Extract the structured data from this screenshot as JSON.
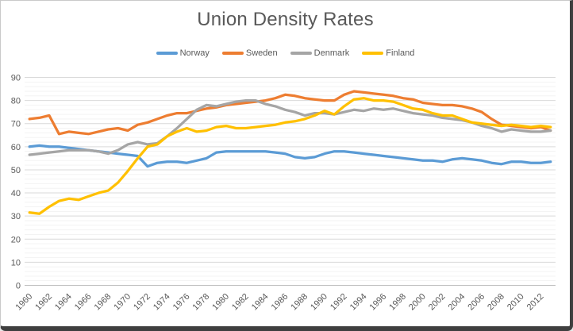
{
  "chart_data": {
    "type": "line",
    "title": "Union Density Rates",
    "xlabel": "",
    "ylabel": "",
    "ylim": [
      0,
      90
    ],
    "ytick_step": 10,
    "minor_ytick_step": 2,
    "x_tick_interval": 2,
    "grid": true,
    "legend_position": "top",
    "x": [
      1960,
      1961,
      1962,
      1963,
      1964,
      1965,
      1966,
      1967,
      1968,
      1969,
      1970,
      1971,
      1972,
      1973,
      1974,
      1975,
      1976,
      1977,
      1978,
      1979,
      1980,
      1981,
      1982,
      1983,
      1984,
      1985,
      1986,
      1987,
      1988,
      1989,
      1990,
      1991,
      1992,
      1993,
      1994,
      1995,
      1996,
      1997,
      1998,
      1999,
      2000,
      2001,
      2002,
      2003,
      2004,
      2005,
      2006,
      2007,
      2008,
      2009,
      2010,
      2011,
      2012,
      2013
    ],
    "series": [
      {
        "name": "Norway",
        "color": "#5B9BD5",
        "values": [
          60,
          60.5,
          60,
          60,
          59.5,
          59,
          58.5,
          58,
          57.5,
          57,
          56.5,
          56,
          51.5,
          53,
          53.5,
          53.5,
          53,
          54,
          55,
          57.5,
          58,
          58,
          58,
          58,
          58,
          57.5,
          57,
          55.5,
          55,
          55.5,
          57,
          58,
          58,
          57.5,
          57,
          56.5,
          56,
          55.5,
          55,
          54.5,
          54,
          54,
          53.5,
          54.5,
          55,
          54.5,
          54,
          53,
          52.5,
          53.5,
          53.5,
          53,
          53,
          53.5
        ]
      },
      {
        "name": "Sweden",
        "color": "#ED7D31",
        "values": [
          72,
          72.5,
          73.5,
          65.5,
          66.5,
          66,
          65.5,
          66.5,
          67.5,
          68,
          67,
          69.5,
          70.5,
          72,
          73.5,
          74.5,
          74.5,
          75.5,
          76.5,
          77,
          78,
          78.5,
          79,
          79.5,
          80,
          81,
          82.5,
          82,
          81,
          80.5,
          80,
          80,
          82.5,
          84,
          83.5,
          83,
          82.5,
          82,
          81,
          80.5,
          79,
          78.5,
          78,
          78,
          77.5,
          76.5,
          75,
          72,
          69.5,
          69,
          68.5,
          68,
          68.5,
          67
        ]
      },
      {
        "name": "Denmark",
        "color": "#A5A5A5",
        "values": [
          56.5,
          57,
          57.5,
          58,
          58.5,
          58.5,
          58.5,
          58,
          57,
          58.5,
          61,
          62,
          61,
          61.5,
          64.5,
          68,
          72,
          76,
          78,
          77.5,
          78.5,
          79.5,
          80,
          80,
          78.5,
          77.5,
          76,
          75,
          73.5,
          74.5,
          74.5,
          74,
          75,
          76,
          75.5,
          76.5,
          76,
          76.5,
          75.5,
          74.5,
          74,
          73.5,
          72.5,
          72,
          71.5,
          70.5,
          69,
          68,
          66.5,
          67.5,
          67,
          66.5,
          66.5,
          67
        ]
      },
      {
        "name": "Finland",
        "color": "#FFC000",
        "values": [
          31.5,
          31,
          34,
          36.5,
          37.5,
          37,
          38.5,
          40,
          41,
          44.5,
          49.5,
          55,
          60,
          61,
          64.5,
          66.5,
          68,
          66.5,
          67,
          68.5,
          69,
          68,
          68,
          68.5,
          69,
          69.5,
          70.5,
          71,
          72,
          73.5,
          75.5,
          74,
          77.5,
          80.5,
          81,
          80,
          80,
          79.5,
          78,
          76.5,
          76,
          74.5,
          73.5,
          73.5,
          72,
          70.5,
          70,
          69.5,
          69,
          69.5,
          69,
          68.5,
          69,
          68.5
        ]
      }
    ]
  },
  "colors": {
    "text": "#595959",
    "grid_major": "#D9D9D9",
    "grid_minor": "#F3F3F3",
    "axis_line": "#BFBFBF",
    "frame_border": "#3F3F3F"
  }
}
